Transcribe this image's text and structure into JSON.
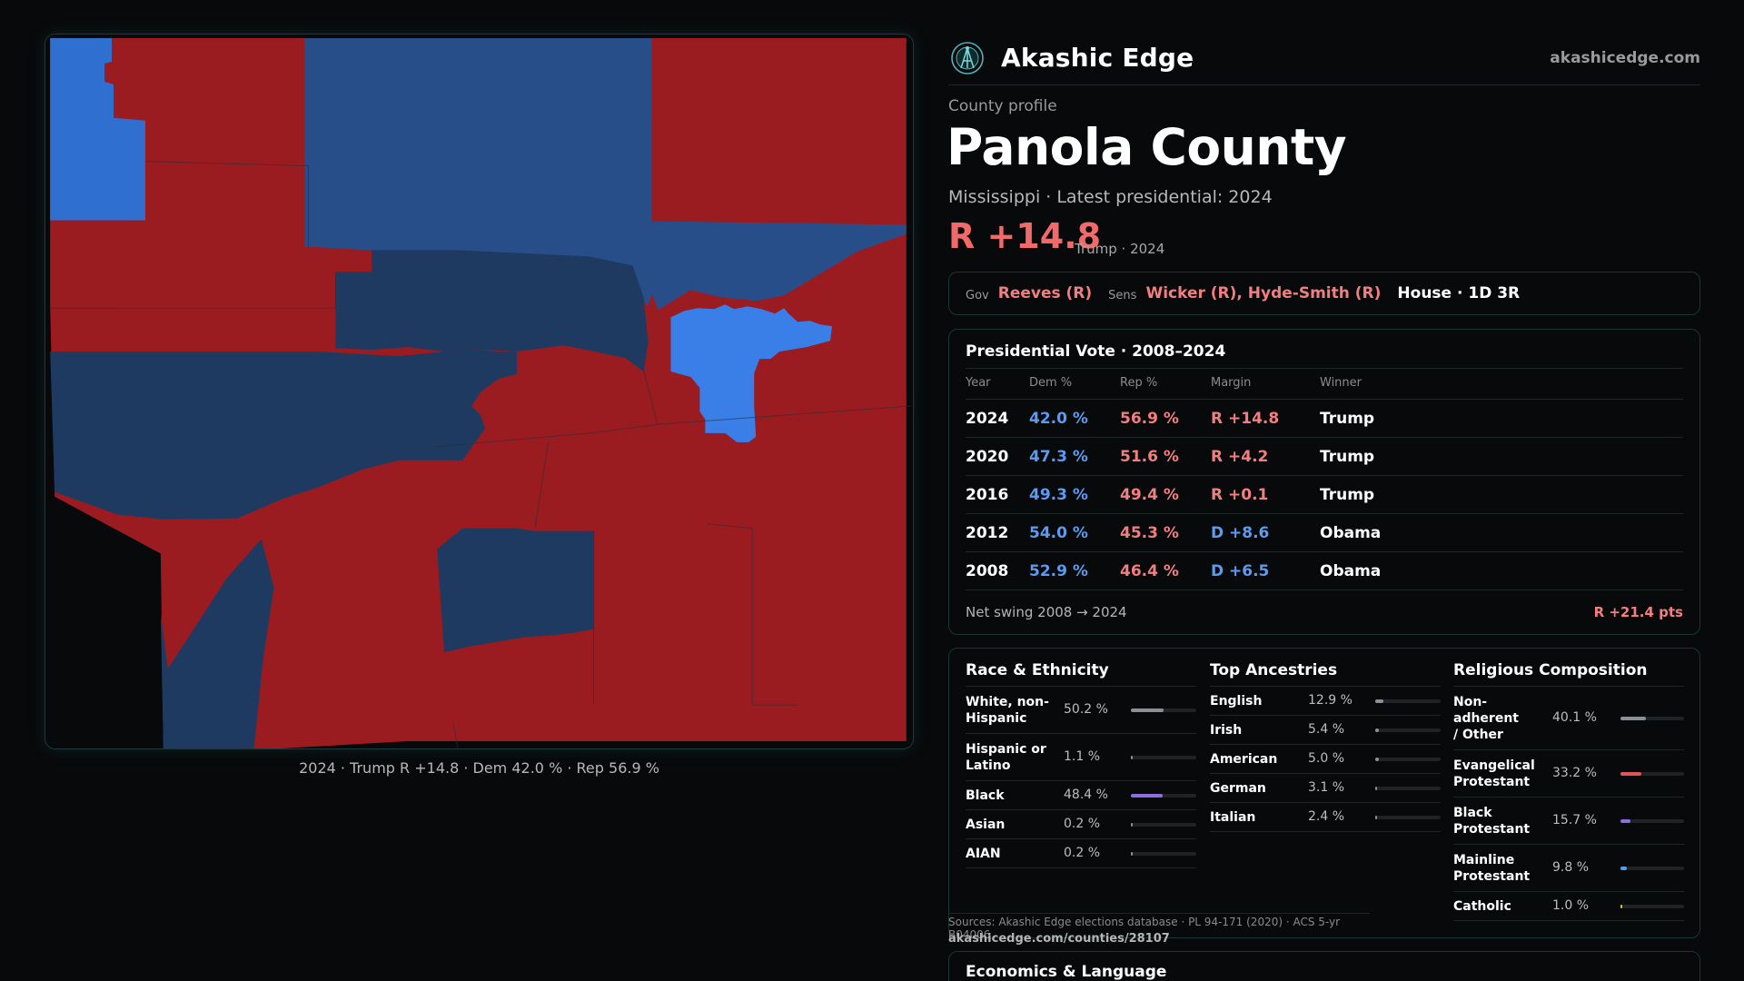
{
  "brand": {
    "name": "Akashic Edge",
    "domain": "akashicedge.com",
    "logo_icon": "globe-antenna-icon"
  },
  "profile": {
    "eyebrow": "County profile",
    "title": "Panola County",
    "subtitle": "Mississippi · Latest presidential: 2024",
    "margin": "R +14.8",
    "margin_note": "Trump · 2024"
  },
  "officials": {
    "gov_label": "Gov",
    "gov": "Reeves (R)",
    "sens_label": "Sens",
    "sens": "Wicker (R), Hyde-Smith (R)",
    "house": "House · 1D 3R"
  },
  "presidential": {
    "title": "Presidential Vote · 2008–2024",
    "headers": {
      "year": "Year",
      "dem": "Dem %",
      "rep": "Rep %",
      "margin": "Margin",
      "winner": "Winner"
    },
    "rows": [
      {
        "year": "2024",
        "dem": "42.0 %",
        "rep": "56.9 %",
        "margin": "R +14.8",
        "party": "R",
        "winner": "Trump"
      },
      {
        "year": "2020",
        "dem": "47.3 %",
        "rep": "51.6 %",
        "margin": "R +4.2",
        "party": "R",
        "winner": "Trump"
      },
      {
        "year": "2016",
        "dem": "49.3 %",
        "rep": "49.4 %",
        "margin": "R +0.1",
        "party": "R",
        "winner": "Trump"
      },
      {
        "year": "2012",
        "dem": "54.0 %",
        "rep": "45.3 %",
        "margin": "D +8.6",
        "party": "D",
        "winner": "Obama"
      },
      {
        "year": "2008",
        "dem": "52.9 %",
        "rep": "46.4 %",
        "margin": "D +6.5",
        "party": "D",
        "winner": "Obama"
      }
    ],
    "swing_label": "Net swing 2008 → 2024",
    "swing_value": "R +21.4 pts"
  },
  "race": {
    "title": "Race & Ethnicity",
    "items": [
      {
        "label": "White, non-Hispanic",
        "pct": "50.2 %",
        "value": 50.2,
        "color": "#8c8f96"
      },
      {
        "label": "Hispanic or Latino",
        "pct": "1.1 %",
        "value": 1.1,
        "color": "#8c8f96"
      },
      {
        "label": "Black",
        "pct": "48.4 %",
        "value": 48.4,
        "color": "#8b6fe0"
      },
      {
        "label": "Asian",
        "pct": "0.2 %",
        "value": 0.2,
        "color": "#8c8f96"
      },
      {
        "label": "AIAN",
        "pct": "0.2 %",
        "value": 0.2,
        "color": "#8c8f96"
      }
    ]
  },
  "ancestry": {
    "title": "Top Ancestries",
    "items": [
      {
        "label": "English",
        "pct": "12.9 %",
        "value": 12.9,
        "color": "#8c8f96"
      },
      {
        "label": "Irish",
        "pct": "5.4 %",
        "value": 5.4,
        "color": "#8c8f96"
      },
      {
        "label": "American",
        "pct": "5.0 %",
        "value": 5.0,
        "color": "#8c8f96"
      },
      {
        "label": "German",
        "pct": "3.1 %",
        "value": 3.1,
        "color": "#8c8f96"
      },
      {
        "label": "Italian",
        "pct": "2.4 %",
        "value": 2.4,
        "color": "#8c8f96"
      }
    ]
  },
  "religion": {
    "title": "Religious Composition",
    "items": [
      {
        "label": "Non-adherent / Other",
        "pct": "40.1 %",
        "value": 40.1,
        "color": "#8c8f96"
      },
      {
        "label": "Evangelical Protestant",
        "pct": "33.2 %",
        "value": 33.2,
        "color": "#e0555c"
      },
      {
        "label": "Black Protestant",
        "pct": "15.7 %",
        "value": 15.7,
        "color": "#8b6fe0"
      },
      {
        "label": "Mainline Protestant",
        "pct": "9.8 %",
        "value": 9.8,
        "color": "#5b9cf2"
      },
      {
        "label": "Catholic",
        "pct": "1.0 %",
        "value": 1.0,
        "color": "#e8b84a"
      }
    ]
  },
  "sources": "Sources: Akashic Edge elections database · PL 94-171 (2020) · ACS 5-yr B04006",
  "source_link": "akashicedge.com/counties/28107",
  "economics_title": "Economics & Language",
  "map": {
    "caption": "2024 · Trump R +14.8 · Dem 42.0 % · Rep 56.9 %",
    "colors": {
      "rep": "#9a1c20",
      "dem_dark": "#1f3a62",
      "dem_mid": "#2a5190",
      "dem_light": "#3a7ee8"
    }
  }
}
